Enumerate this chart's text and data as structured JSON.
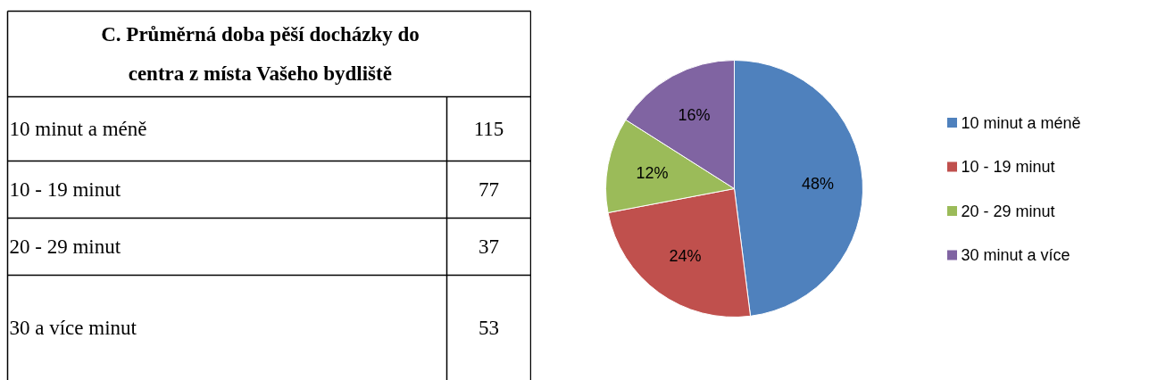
{
  "chart_data": [
    {
      "type": "other",
      "title": "C. Průměrná doba pěší docházky do centra z místa Vašeho bydliště",
      "categories": [
        "10 minut a méně",
        "10 - 19 minut",
        "20 - 29 minut",
        "30 a více minut"
      ],
      "values": [
        115,
        77,
        37,
        53
      ],
      "data_labels": true
    },
    {
      "type": "pie",
      "categories": [
        "10 minut a méně",
        "10 - 19 minut",
        "20 - 29 minut",
        "30 minut a více"
      ],
      "values": [
        48,
        24,
        12,
        16
      ],
      "colors": [
        "#4f81bd",
        "#c0504d",
        "#9bbb59",
        "#8064a2"
      ],
      "value_labels": [
        "48%",
        "24%",
        "12%",
        "16%"
      ],
      "legend": "right"
    }
  ]
}
